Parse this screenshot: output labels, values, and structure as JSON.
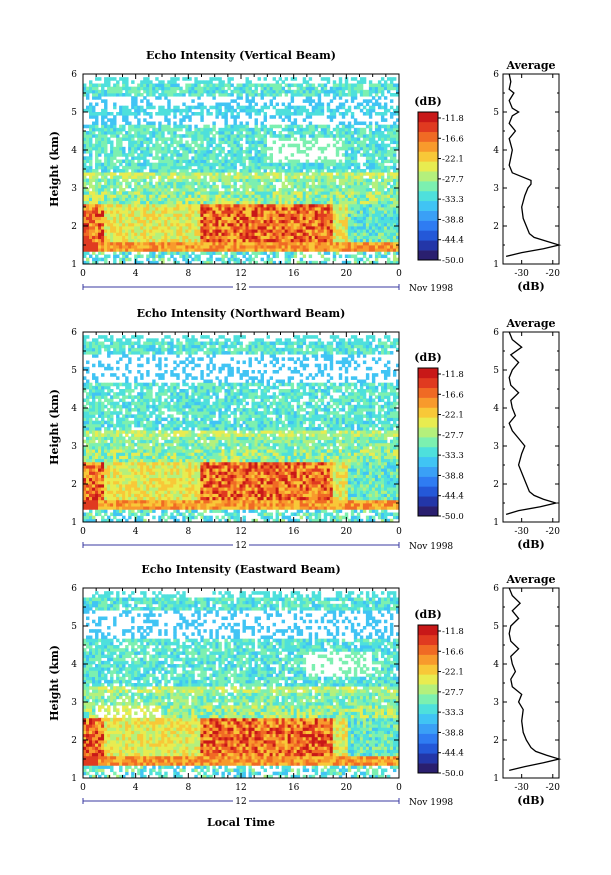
{
  "colorbar": {
    "unit": "(dB)",
    "labels": [
      "-11.8",
      "-16.6",
      "-22.1",
      "-27.7",
      "-33.3",
      "-38.8",
      "-44.4",
      "-50.0"
    ],
    "colors": [
      "#2a1f6f",
      "#2336a8",
      "#2458d8",
      "#2f7cf2",
      "#3aa0f6",
      "#40c4f4",
      "#4ee0dc",
      "#7cf0b0",
      "#b4f07c",
      "#e8ec50",
      "#f8c838",
      "#f89a2c",
      "#f06a24",
      "#e03a20",
      "#c81818"
    ]
  },
  "shared": {
    "x_ticks": [
      "0",
      "4",
      "8",
      "12",
      "16",
      "20",
      "0"
    ],
    "y_ticks": [
      "1",
      "2",
      "3",
      "4",
      "5",
      "6"
    ],
    "y_label": "Height (km)",
    "date_tick": "12",
    "date_label": "Nov 1998",
    "x_label": "Local Time",
    "avg_title": "Average",
    "avg_x_ticks": [
      "-30",
      "-20"
    ],
    "avg_x_label": "(dB)"
  },
  "chart_data": [
    {
      "type": "heatmap",
      "title": "Echo Intensity (Vertical Beam)",
      "xlabel": "",
      "ylabel": "Height (km)",
      "xlim": [
        0,
        24
      ],
      "ylim": [
        1,
        6
      ],
      "units": "dB",
      "profile": {
        "title": "Average",
        "xlim": [
          -36,
          -18
        ],
        "heights": [
          1.2,
          1.3,
          1.4,
          1.5,
          1.6,
          1.7,
          1.8,
          2.0,
          2.2,
          2.5,
          2.8,
          3.0,
          3.1,
          3.2,
          3.4,
          3.6,
          3.8,
          4.0,
          4.3,
          4.5,
          4.7,
          4.9,
          5.0,
          5.1,
          5.3,
          5.5,
          5.6,
          5.8,
          6.0
        ],
        "values": [
          -35,
          -30,
          -23,
          -18,
          -22,
          -26,
          -27.5,
          -28.5,
          -29.5,
          -30,
          -29,
          -28,
          -27,
          -27,
          -33,
          -34,
          -33.5,
          -33,
          -34,
          -32,
          -34,
          -33,
          -31,
          -33,
          -34,
          -32.5,
          -34,
          -33.5,
          -34
        ]
      }
    },
    {
      "type": "heatmap",
      "title": "Echo Intensity (Northward Beam)",
      "xlabel": "",
      "ylabel": "Height (km)",
      "xlim": [
        0,
        24
      ],
      "ylim": [
        1,
        6
      ],
      "units": "dB",
      "profile": {
        "title": "Average",
        "xlim": [
          -36,
          -18
        ],
        "heights": [
          1.2,
          1.3,
          1.4,
          1.5,
          1.6,
          1.7,
          1.8,
          2.0,
          2.2,
          2.5,
          2.8,
          3.0,
          3.2,
          3.4,
          3.6,
          3.8,
          4.0,
          4.2,
          4.4,
          4.6,
          4.8,
          5.0,
          5.2,
          5.4,
          5.6,
          5.8,
          6.0
        ],
        "values": [
          -35,
          -31,
          -24,
          -19,
          -23,
          -26,
          -27.5,
          -28.5,
          -29.5,
          -31,
          -30,
          -29,
          -31,
          -33,
          -34,
          -32,
          -33,
          -33.5,
          -31,
          -33.5,
          -34,
          -33,
          -31,
          -33.5,
          -30,
          -33,
          -34
        ]
      }
    },
    {
      "type": "heatmap",
      "title": "Echo Intensity (Eastward Beam)",
      "xlabel": "Local Time",
      "ylabel": "Height (km)",
      "xlim": [
        0,
        24
      ],
      "ylim": [
        1,
        6
      ],
      "units": "dB",
      "profile": {
        "title": "Average",
        "xlim": [
          -36,
          -18
        ],
        "heights": [
          1.2,
          1.3,
          1.4,
          1.5,
          1.6,
          1.7,
          1.8,
          2.0,
          2.2,
          2.5,
          2.8,
          3.0,
          3.2,
          3.4,
          3.6,
          3.8,
          4.0,
          4.2,
          4.4,
          4.6,
          4.8,
          5.0,
          5.2,
          5.4,
          5.6,
          5.8,
          6.0
        ],
        "values": [
          -34,
          -29,
          -23,
          -18,
          -22,
          -25.5,
          -27,
          -28.5,
          -29.5,
          -30,
          -29.5,
          -31,
          -30,
          -33,
          -33.5,
          -32,
          -33,
          -33.5,
          -31,
          -33.5,
          -34,
          -33.5,
          -31,
          -33,
          -30.5,
          -33,
          -34
        ]
      }
    }
  ]
}
